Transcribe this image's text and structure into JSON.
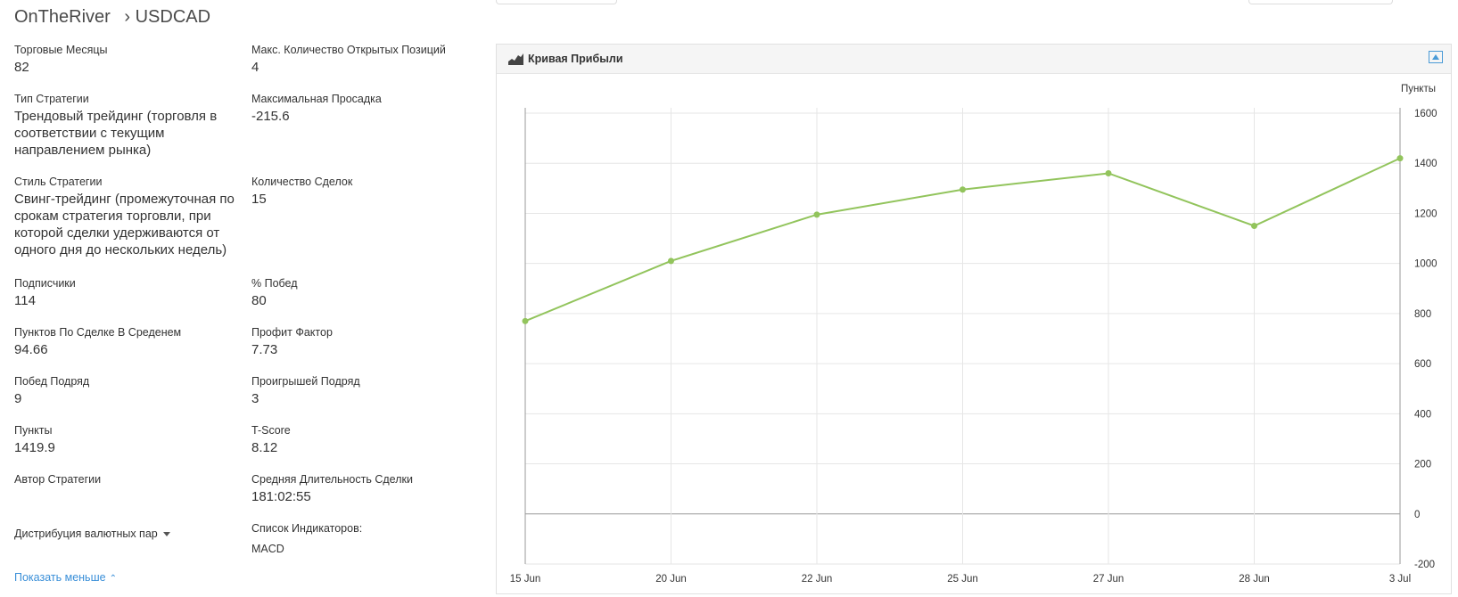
{
  "header": {
    "strategy_name": "OnTheRiver",
    "separator": "›",
    "symbol": "USDCAD"
  },
  "stats": {
    "trading_months": {
      "label": "Торговые Месяцы",
      "value": "82"
    },
    "max_open_positions": {
      "label": "Макс. Количество Открытых Позиций",
      "value": "4"
    },
    "strategy_type": {
      "label": "Тип Стратегии",
      "value": "Трендовый трейдинг (торговля в соответствии с текущим направлением рынка)"
    },
    "max_drawdown": {
      "label": "Максимальная Просадка",
      "value": "-215.6"
    },
    "strategy_style": {
      "label": "Стиль Стратегии",
      "value": "Свинг-трейдинг (промежуточная по срокам стратегия торговли, при которой сделки удерживаются от одного дня до нескольких недель)"
    },
    "trades_count": {
      "label": "Количество Сделок",
      "value": "15"
    },
    "subscribers": {
      "label": "Подписчики",
      "value": "114"
    },
    "win_percent": {
      "label": "% Побед",
      "value": "80"
    },
    "avg_pips_per_trade": {
      "label": "Пунктов По Сделке В Среденем",
      "value": "94.66"
    },
    "profit_factor": {
      "label": "Профит Фактор",
      "value": "7.73"
    },
    "wins_in_row": {
      "label": "Побед Подряд",
      "value": "9"
    },
    "losses_in_row": {
      "label": "Проигрышей Подряд",
      "value": "3"
    },
    "pips": {
      "label": "Пункты",
      "value": "1419.9"
    },
    "t_score": {
      "label": "T-Score",
      "value": "8.12"
    },
    "author": {
      "label": "Автор Стратегии",
      "value": ""
    },
    "avg_trade_duration": {
      "label": "Средняя Длительность Сделки",
      "value": "181:02:55"
    },
    "indicators": {
      "label": "Список Индикаторов:",
      "value": "MACD"
    }
  },
  "currency_distribution": {
    "label": "Дистрибуция валютных пар"
  },
  "show_less": {
    "label": "Показать меньше",
    "chevron": "⌃"
  },
  "profit_panel": {
    "title": "Кривая Прибыли",
    "icon": "area-chart-icon",
    "collapse_icon": "collapse-up-icon"
  },
  "colors": {
    "line": "#92c45c",
    "grid": "#e6e6e6",
    "link": "#3a8fd8",
    "accent_icon": "#4a9ad6"
  },
  "chart_data": {
    "type": "line",
    "title": "",
    "ylabel": "Пункты",
    "xlabel": "",
    "categories": [
      "15 Jun",
      "20 Jun",
      "22 Jun",
      "25 Jun",
      "27 Jun",
      "28 Jun",
      "3 Jul"
    ],
    "values": [
      770,
      1010,
      1195,
      1295,
      1360,
      1150,
      1420
    ],
    "ylim": [
      -200,
      1600
    ],
    "yticks": [
      -200,
      0,
      200,
      400,
      600,
      800,
      1000,
      1200,
      1400,
      1600
    ],
    "grid": true,
    "legend": "none"
  }
}
